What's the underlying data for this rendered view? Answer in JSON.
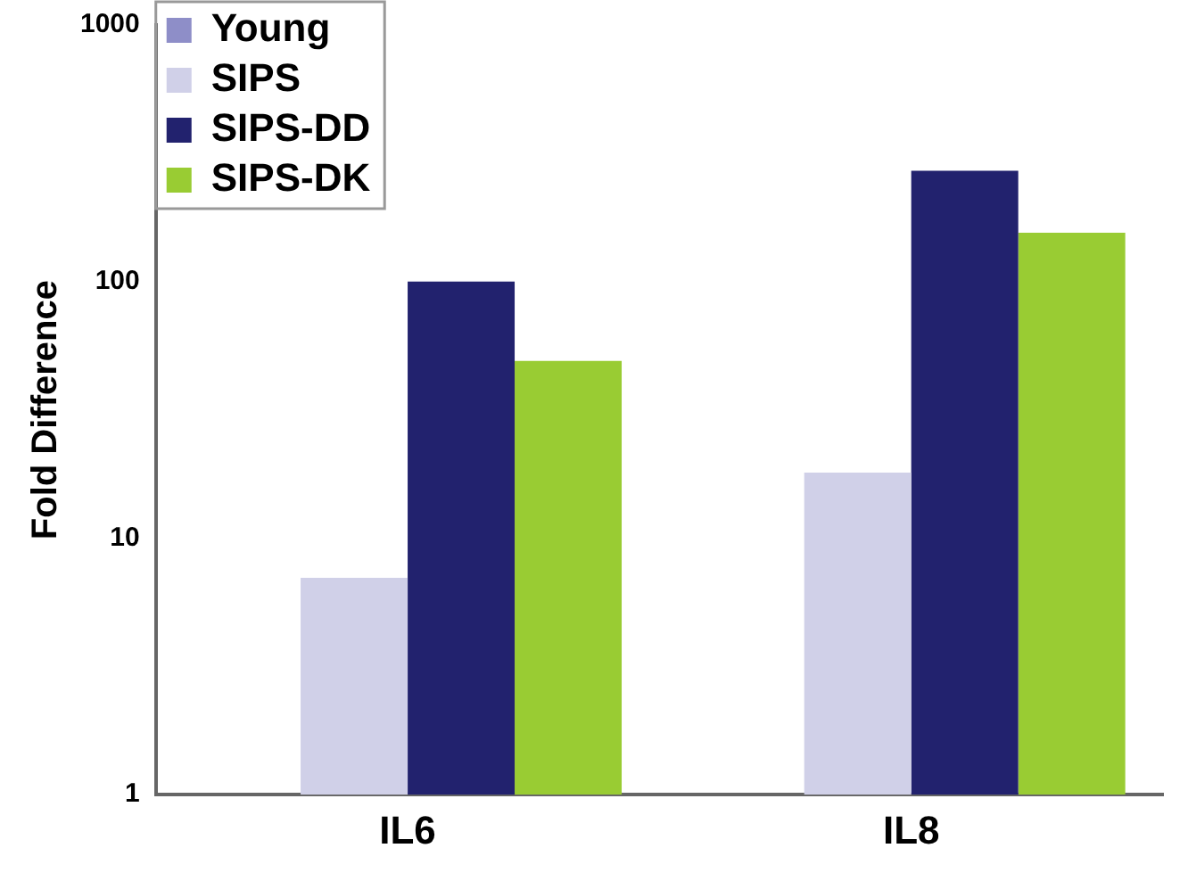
{
  "chart_data": {
    "type": "bar",
    "ylabel": "Fold Difference",
    "categories": [
      "IL6",
      "IL8"
    ],
    "series": [
      {
        "name": "Young",
        "color": "#8e8ec8",
        "values": [
          1,
          1
        ]
      },
      {
        "name": "SIPS",
        "color": "#d0d0e8",
        "values": [
          7,
          18
        ]
      },
      {
        "name": "SIPS-DD",
        "color": "#22226e",
        "values": [
          100,
          270
        ]
      },
      {
        "name": "SIPS-DK",
        "color": "#99cc33",
        "values": [
          49,
          155
        ]
      }
    ],
    "log": true,
    "ylim": [
      1,
      1000
    ],
    "yticks": [
      1,
      10,
      100,
      1000
    ],
    "grid": false,
    "legend": "top left"
  }
}
